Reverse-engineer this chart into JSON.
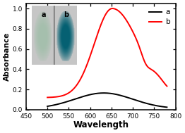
{
  "xlabel": "Wavelength",
  "ylabel": "Absorbance",
  "xlim": [
    450,
    800
  ],
  "ylim": [
    0.0,
    1.05
  ],
  "xticks": [
    450,
    500,
    550,
    600,
    650,
    700,
    750,
    800
  ],
  "yticks": [
    0.0,
    0.2,
    0.4,
    0.6,
    0.8,
    1.0
  ],
  "line_a_color": "#000000",
  "line_b_color": "#ff0000",
  "background_color": "#ffffff",
  "inset_label": "A",
  "legend_a": "a",
  "legend_b": "b",
  "figsize": [
    2.62,
    1.89
  ],
  "dpi": 100
}
